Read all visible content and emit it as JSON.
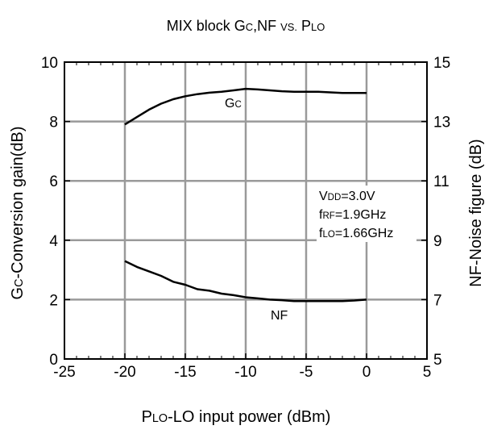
{
  "chart_data": {
    "type": "line",
    "title": {
      "main": "MIX block G",
      "c": "C",
      "mid": ",NF  ",
      "vs": "VS.",
      "sp": "  P",
      "lo": "LO"
    },
    "xlabel": {
      "p": "P",
      "lo": "LO",
      "rest": "-LO input power  (dBm)"
    },
    "ylabel_left": {
      "g": "G",
      "c": "C",
      "rest": "-Conversion gain(dB)"
    },
    "ylabel_right": "NF-Noise figure (dB)",
    "xlim": [
      -25,
      5
    ],
    "ylim_left": [
      0,
      10
    ],
    "ylim_right": [
      5,
      15
    ],
    "x_ticks": [
      "-25",
      "-20",
      "-15",
      "-10",
      "-5",
      "0",
      "5"
    ],
    "y_left_ticks": [
      "0",
      "2",
      "4",
      "6",
      "8",
      "10"
    ],
    "y_right_ticks": [
      "5",
      "7",
      "9",
      "11",
      "13",
      "15"
    ],
    "grid": true,
    "series": [
      {
        "name": "Gc",
        "axis": "left",
        "x": [
          -20,
          -19,
          -18,
          -17,
          -16,
          -15,
          -14,
          -13,
          -12,
          -11,
          -10,
          -9,
          -8,
          -7,
          -6,
          -5,
          -4,
          -3,
          -2,
          -1,
          0
        ],
        "y": [
          7.9,
          8.15,
          8.4,
          8.6,
          8.75,
          8.85,
          8.92,
          8.97,
          9.0,
          9.05,
          9.1,
          9.08,
          9.05,
          9.02,
          9.0,
          9.0,
          9.0,
          8.98,
          8.96,
          8.96,
          8.96
        ]
      },
      {
        "name": "NF",
        "axis": "right",
        "x": [
          -20,
          -19,
          -18,
          -17,
          -16,
          -15,
          -14,
          -13,
          -12,
          -11,
          -10,
          -9,
          -8,
          -7,
          -6,
          -5,
          -4,
          -3,
          -2,
          -1,
          0
        ],
        "y": [
          8.3,
          8.1,
          7.95,
          7.8,
          7.6,
          7.5,
          7.35,
          7.3,
          7.2,
          7.15,
          7.08,
          7.04,
          7.0,
          6.98,
          6.95,
          6.95,
          6.95,
          6.95,
          6.95,
          6.97,
          7.0
        ]
      }
    ],
    "labels": {
      "gc_main": "G",
      "gc_sub": "C",
      "nf": "NF"
    },
    "annotation": [
      {
        "main": "V",
        "sub": "DD",
        "rest": "=3.0V"
      },
      {
        "main": "f",
        "sub": "RF",
        "rest": "=1.9GHz"
      },
      {
        "main": "f",
        "sub": "LO",
        "rest": "=1.66GHz"
      }
    ],
    "colors": {
      "line": "#000000",
      "grid": "#9a9a9a",
      "frame": "#000000"
    }
  }
}
